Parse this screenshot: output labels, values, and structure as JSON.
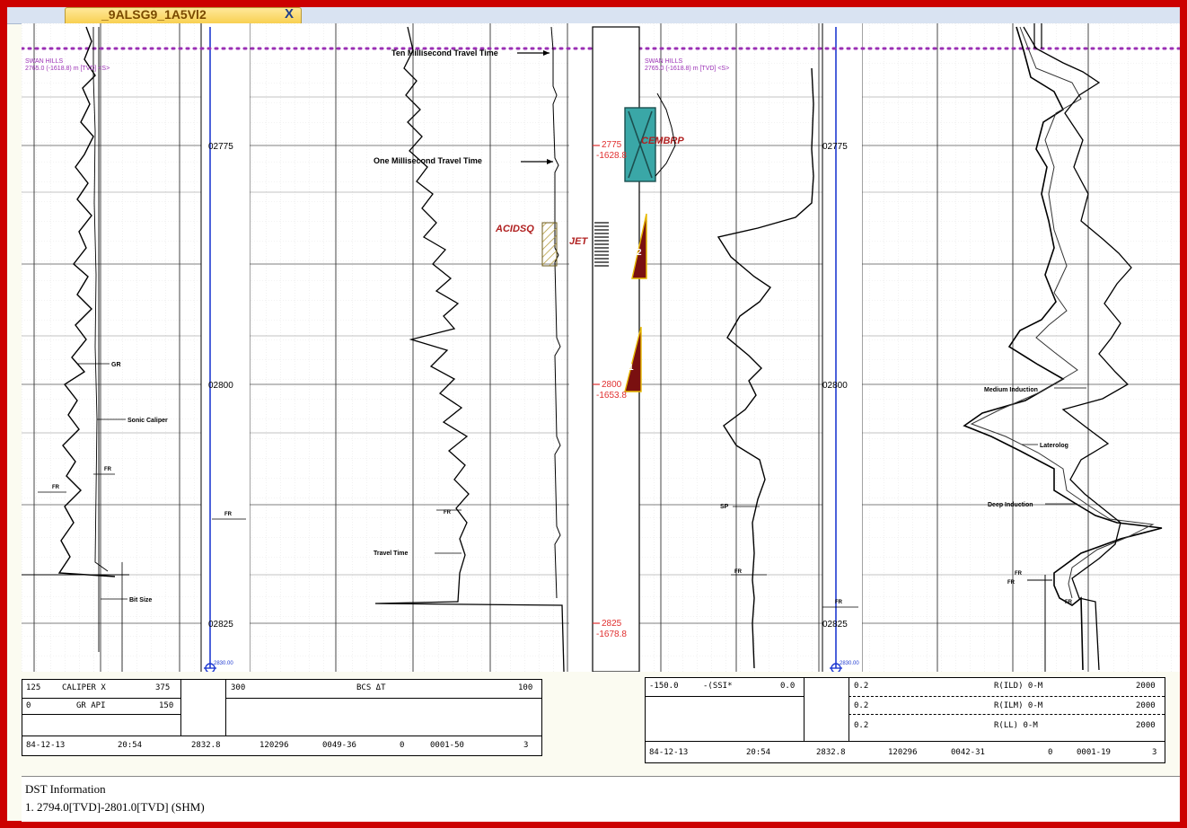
{
  "window": {
    "tab_title": "_9ALSG9_1A5Vl2",
    "tab_close": "X"
  },
  "track_left": {
    "marker_title": "SWAN HILLS",
    "marker_sub": "2765.0 (-1618.8) m [TVD] <S>",
    "depths": [
      "02775",
      "02800",
      "02825"
    ],
    "bottom_depth": "2830.00",
    "annotations": [
      "GR",
      "Sonic Caliper",
      "FR",
      "FR",
      "Bit Size",
      "FR"
    ],
    "travel_labels": [
      "Ten Millisecond Travel Time",
      "One Millisecond Travel Time",
      "Travel Time",
      "FR"
    ]
  },
  "middle": {
    "depth_markers": [
      {
        "md": "2775",
        "tvd": "-1628.8"
      },
      {
        "md": "2800",
        "tvd": "-1653.8"
      },
      {
        "md": "2825",
        "tvd": "-1678.8"
      }
    ],
    "labels": {
      "cement": "CEMBRP",
      "acid": "ACIDSQ",
      "jet": "JET"
    },
    "perf_numbers": [
      "2",
      "1"
    ]
  },
  "track_right": {
    "marker_title": "SWAN HILLS",
    "marker_sub": "2765.0 (-1618.8) m [TVD] <S>",
    "depths": [
      "02775",
      "02800",
      "02825"
    ],
    "bottom_depth": "2830.00",
    "annotations": [
      "SP",
      "FR",
      "FR",
      "Medium Induction",
      "Laterolog",
      "Deep Induction",
      "FR",
      "FR",
      "FR"
    ]
  },
  "header_left": {
    "row1": {
      "min": "125",
      "name": "CALIPER X",
      "max": "375",
      "bcs_min": "300",
      "bcs_name": "BCS ΔT",
      "bcs_max": "100"
    },
    "row2": {
      "min": "0",
      "name": "GR API",
      "max": "150"
    },
    "footer": [
      "84-12-13",
      "20:54",
      "2832.8",
      "120296",
      "0049-36",
      "0",
      "0001-50",
      "3"
    ]
  },
  "header_right": {
    "row1": {
      "min": "-150.0",
      "name": "-(SSI*",
      "max": "0.0"
    },
    "curves": [
      {
        "min": "0.2",
        "name": "R(ILD) 0-M",
        "max": "2000"
      },
      {
        "min": "0.2",
        "name": "R(ILM) 0-M",
        "max": "2000"
      },
      {
        "min": "0.2",
        "name": "R(LL) 0-M",
        "max": "2000"
      }
    ],
    "footer": [
      "84-12-13",
      "20:54",
      "2832.8",
      "120296",
      "0042-31",
      "0",
      "0001-19",
      "3"
    ]
  },
  "dst": {
    "title": "DST Information",
    "entries": [
      "1. 2794.0[TVD]-2801.0[TVD] (SHM)"
    ]
  },
  "colors": {
    "frame": "#cc0000",
    "marker": "#9b30b5",
    "depth_red": "#e03030",
    "depth_line": "#1f3ad1",
    "cement": "#3aa7a7",
    "perf": "#7a1010"
  }
}
